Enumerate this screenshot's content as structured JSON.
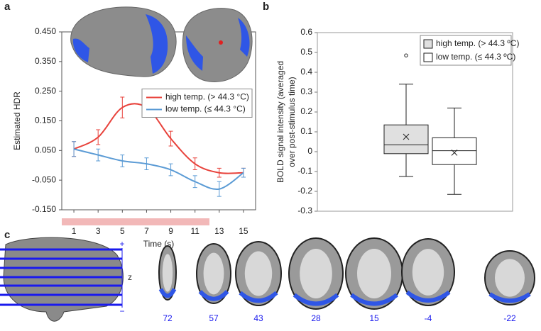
{
  "chart_data": [
    {
      "type": "line",
      "panel_label": "a",
      "xlabel": "Time (s)",
      "ylabel": "Estimated HDR",
      "x": [
        1,
        3,
        5,
        7,
        9,
        11,
        13,
        15
      ],
      "xlim": [
        0,
        16
      ],
      "xticks": [
        1,
        3,
        5,
        7,
        9,
        11,
        13,
        15
      ],
      "ylim": [
        -0.15,
        0.45
      ],
      "yticks": [
        {
          "value": 0.45,
          "label": "0.450"
        },
        {
          "value": 0.35,
          "label": "0.350"
        },
        {
          "value": 0.25,
          "label": "0.250"
        },
        {
          "value": 0.15,
          "label": "0.150"
        },
        {
          "value": 0.05,
          "label": "0.050"
        },
        {
          "value": -0.05,
          "label": "-0.050"
        },
        {
          "value": -0.15,
          "label": "-0.150"
        }
      ],
      "legend": "center right",
      "series": [
        {
          "name": "high temp. (> 44.3 °C)",
          "color": "#e8423b",
          "values": [
            0.055,
            0.095,
            0.195,
            0.195,
            0.09,
            0.005,
            -0.025,
            -0.025
          ],
          "errors": [
            0.025,
            0.025,
            0.035,
            0.03,
            0.025,
            0.02,
            0.015,
            0.015
          ]
        },
        {
          "name": "low temp. (≤ 44.3 °C)",
          "color": "#5b9bd5",
          "values": [
            0.055,
            0.035,
            0.015,
            0.005,
            -0.015,
            -0.055,
            -0.08,
            -0.025
          ],
          "errors": [
            0.025,
            0.02,
            0.02,
            0.02,
            0.02,
            0.02,
            0.025,
            0.015
          ]
        }
      ]
    },
    {
      "type": "box",
      "panel_label": "b",
      "ylabel": [
        "BOLD signal intensity (averaged",
        "over post-stimulus time)"
      ],
      "ylim": [
        -0.3,
        0.6
      ],
      "yticks": [
        0.6,
        0.5,
        0.4,
        0.3,
        0.2,
        0.1,
        0,
        -0.1,
        -0.2,
        -0.3
      ],
      "legend": "upper right",
      "series": [
        {
          "name": "high temp. (> 44.3 ºC)",
          "color": "#e0e0e0",
          "min": -0.125,
          "q1": -0.01,
          "median": 0.035,
          "q3": 0.135,
          "max": 0.34,
          "mean": 0.075,
          "outliers": [
            0.485
          ]
        },
        {
          "name": "low temp. (≤ 44.3 ºC)",
          "color": "#ffffff",
          "min": -0.215,
          "q1": -0.065,
          "median": 0.005,
          "q3": 0.07,
          "max": 0.22,
          "mean": -0.005,
          "outliers": []
        }
      ]
    }
  ],
  "panel_c": {
    "panel_label": "c",
    "axis_label": "z",
    "plus": "+",
    "minus": "−",
    "slices": [
      72,
      57,
      43,
      28,
      15,
      -4,
      -22
    ]
  }
}
